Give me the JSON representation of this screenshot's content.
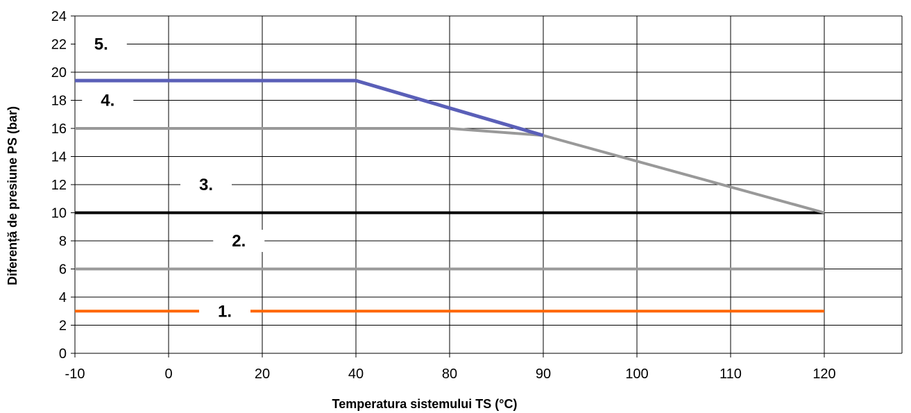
{
  "chart_data": {
    "type": "line",
    "title": "",
    "xlabel": "Temperatura sistemului TS (°C)",
    "ylabel": "Diferență de presiune PS (bar)",
    "x_scale": "categorical",
    "categories": [
      "-10",
      "0",
      "20",
      "40",
      "80",
      "90",
      "100",
      "110",
      "120"
    ],
    "ylim": [
      0,
      24
    ],
    "yticks": [
      "0",
      "2",
      "4",
      "6",
      "8",
      "10",
      "12",
      "14",
      "16",
      "18",
      "20",
      "22",
      "24"
    ],
    "grid": true,
    "legend": "none",
    "series": [
      {
        "name": "1.",
        "color": "#ff6600",
        "points": [
          [
            "-10",
            3
          ],
          [
            "120",
            3
          ]
        ]
      },
      {
        "name": "2.",
        "color": "#999999",
        "points": [
          [
            "-10",
            6
          ],
          [
            "120",
            6
          ]
        ]
      },
      {
        "name": "3.",
        "color": "#000000",
        "points": [
          [
            "-10",
            10
          ],
          [
            "120",
            10
          ]
        ]
      },
      {
        "name": "4.",
        "color": "#999999",
        "points": [
          [
            "-10",
            16
          ],
          [
            "80",
            16
          ],
          [
            "90",
            15.5
          ],
          [
            "120",
            10
          ]
        ]
      },
      {
        "name": "5.",
        "color": "#5a5fb8",
        "points": [
          [
            "-10",
            19.4
          ],
          [
            "40",
            19.4
          ],
          [
            "90",
            15.5
          ]
        ]
      }
    ]
  }
}
